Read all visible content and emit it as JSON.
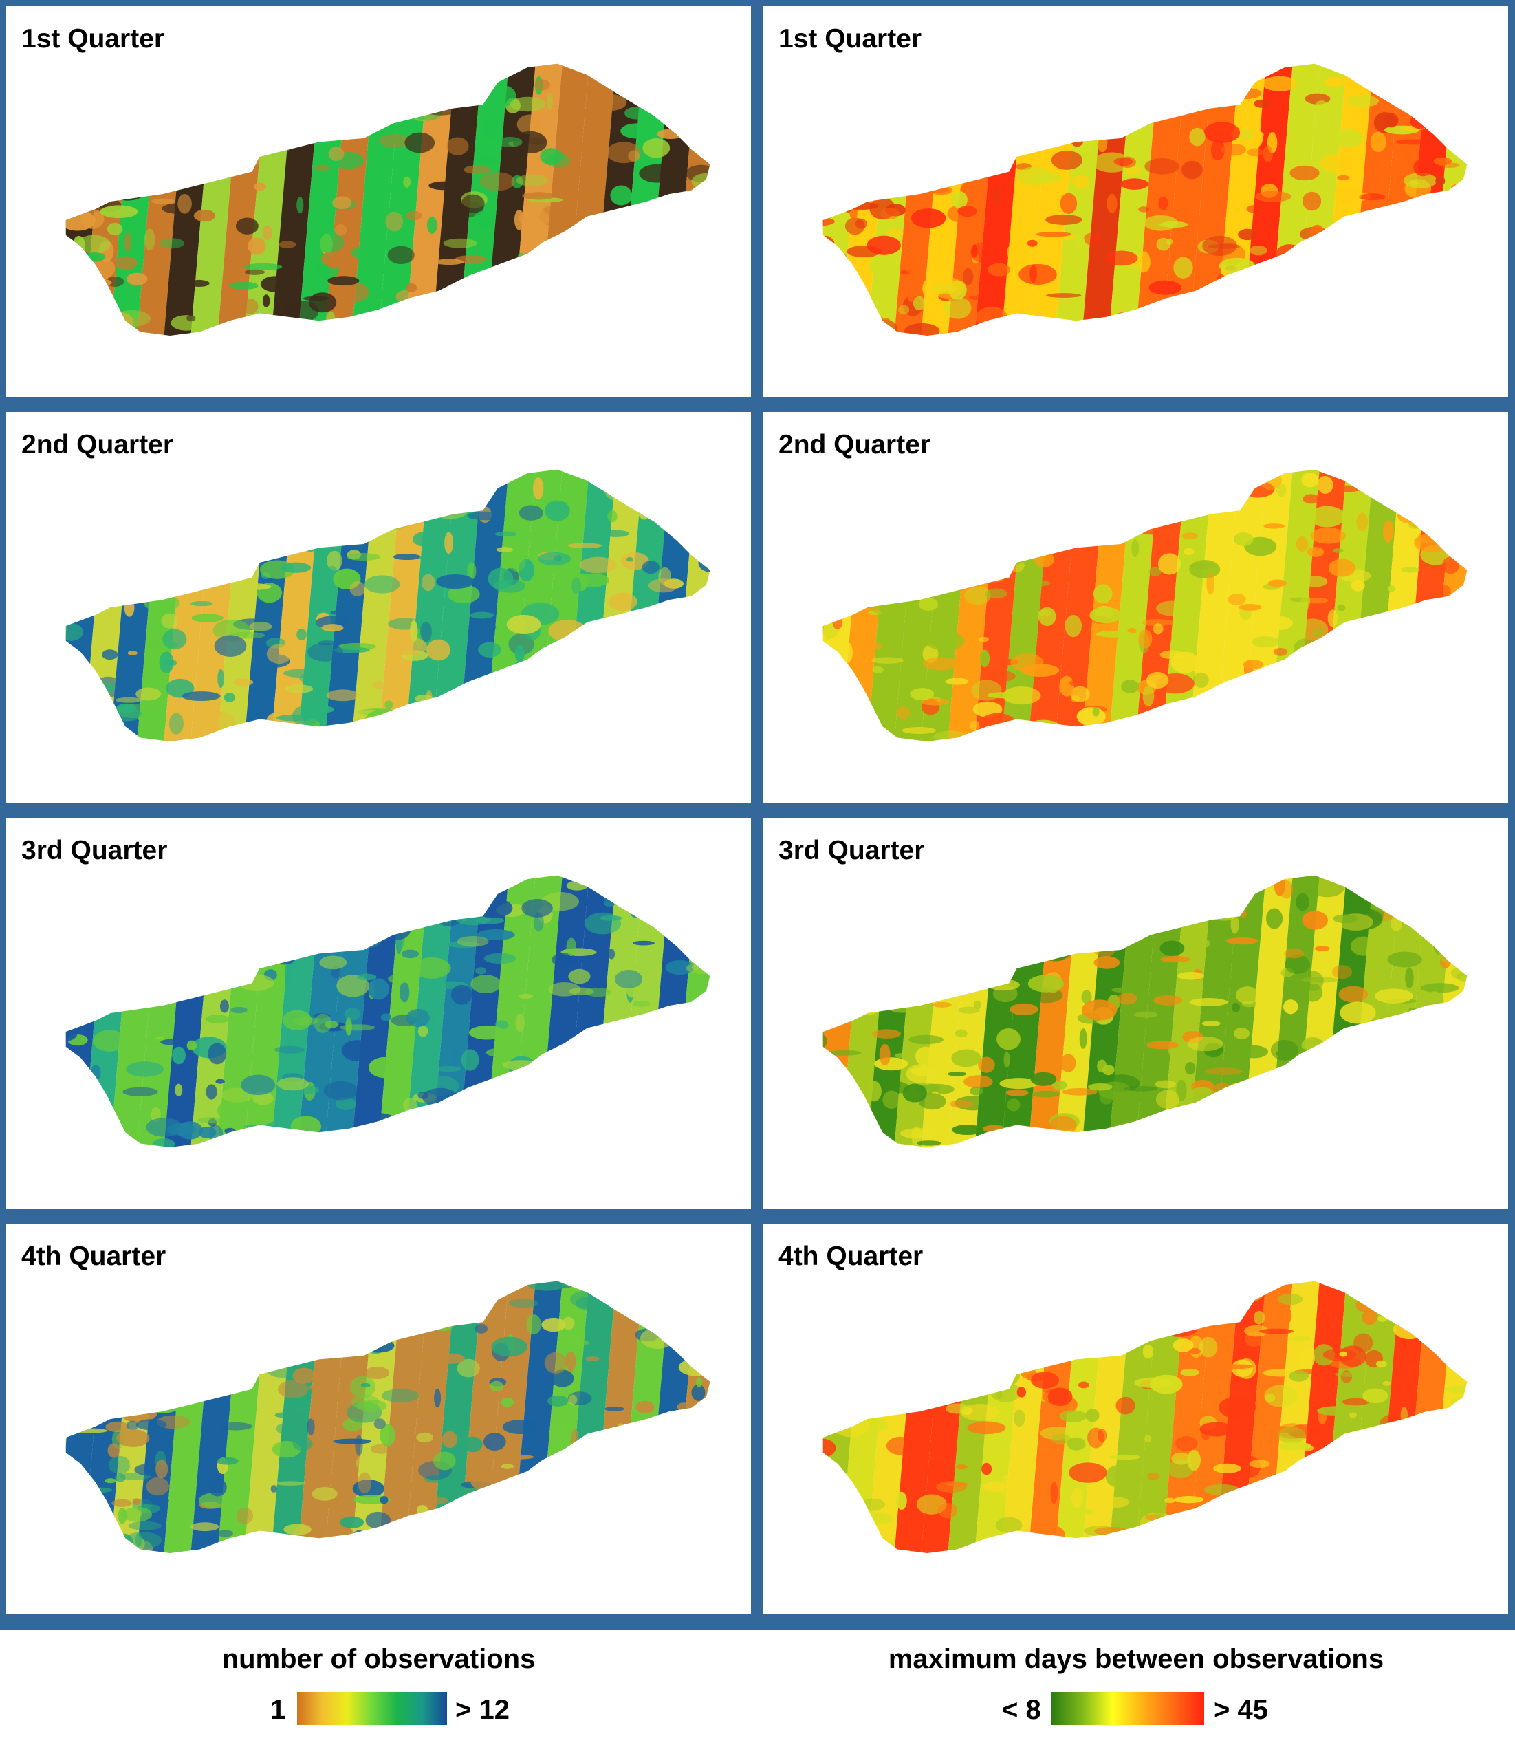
{
  "panels": [
    {
      "row": 0,
      "col": 0,
      "title": "1st Quarter",
      "variable": "obs",
      "dominant_colors": [
        "#e49a3a",
        "#c87a2a",
        "#9fd236",
        "#22c44a",
        "#3b2a1a"
      ]
    },
    {
      "row": 0,
      "col": 1,
      "title": "1st Quarter",
      "variable": "gap",
      "dominant_colors": [
        "#ff3010",
        "#ff6a10",
        "#ffcf10",
        "#d0e020",
        "#e43a10"
      ]
    },
    {
      "row": 1,
      "col": 0,
      "title": "2nd Quarter",
      "variable": "obs",
      "dominant_colors": [
        "#e7b83a",
        "#62cc3a",
        "#1a66a0",
        "#2bb37a",
        "#c9d63a"
      ]
    },
    {
      "row": 1,
      "col": 1,
      "title": "2nd Quarter",
      "variable": "gap",
      "dominant_colors": [
        "#ff9d12",
        "#f5e021",
        "#98c21c",
        "#ff5015",
        "#c4da1e"
      ]
    },
    {
      "row": 2,
      "col": 0,
      "title": "3rd Quarter",
      "variable": "obs",
      "dominant_colors": [
        "#1a57a0",
        "#2aae83",
        "#69cc3a",
        "#1f83a3",
        "#9fd43c"
      ]
    },
    {
      "row": 2,
      "col": 1,
      "title": "3rd Quarter",
      "variable": "gap",
      "dominant_colors": [
        "#6fae1a",
        "#3c8f16",
        "#a8ca1e",
        "#e9e021",
        "#f58a12"
      ]
    },
    {
      "row": 3,
      "col": 0,
      "title": "4th Quarter",
      "variable": "obs",
      "dominant_colors": [
        "#6ccd3a",
        "#c8d63c",
        "#2ba878",
        "#1a62a0",
        "#c48a3a"
      ]
    },
    {
      "row": 3,
      "col": 1,
      "title": "4th Quarter",
      "variable": "gap",
      "dominant_colors": [
        "#ff7a14",
        "#f4dd20",
        "#a6c81e",
        "#ff3c12",
        "#d8e020"
      ]
    }
  ],
  "legends": [
    {
      "id": "obs",
      "title": "number of observations",
      "min_label": "1",
      "max_label": "> 12",
      "gradient": [
        "#d0721d",
        "#f0c030",
        "#ecec1c",
        "#72d83a",
        "#1ab44c",
        "#1a9a8a",
        "#154a96"
      ]
    },
    {
      "id": "gap",
      "title": "maximum days between observations",
      "min_label": "< 8",
      "max_label": "> 45",
      "gradient": [
        "#2a7d10",
        "#7fb81a",
        "#ffff1c",
        "#ffb016",
        "#ff6a14",
        "#ff2410"
      ]
    }
  ],
  "colors": {
    "frame": "#35689a",
    "panel_background": "#ffffff"
  }
}
